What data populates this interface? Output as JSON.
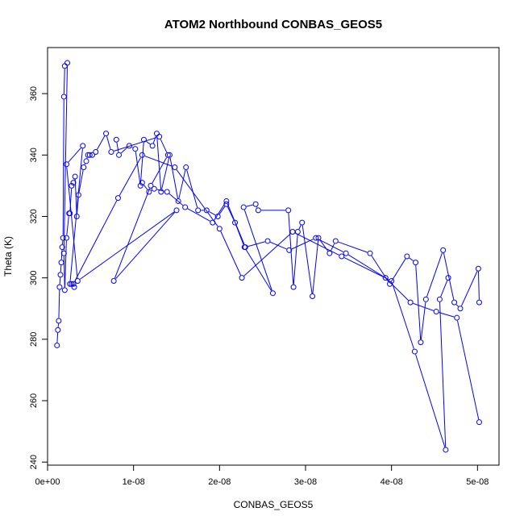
{
  "chart_data": {
    "type": "line",
    "title": "ATOM2 Northbound CONBAS_GEOS5",
    "xlabel": "CONBAS_GEOS5",
    "ylabel": "Theta (K)",
    "xlim": [
      0,
      5.25e-08
    ],
    "ylim": [
      239,
      375
    ],
    "x_ticks": [
      0,
      1e-08,
      2e-08,
      3e-08,
      4e-08,
      5e-08
    ],
    "x_tick_labels": [
      "0e+00",
      "1e-08",
      "2e-08",
      "3e-08",
      "4e-08",
      "5e-08"
    ],
    "y_ticks": [
      240,
      260,
      280,
      300,
      320,
      340,
      360
    ],
    "y_tick_labels": [
      "240",
      "260",
      "280",
      "300",
      "320",
      "340",
      "360"
    ],
    "grid": false,
    "series_color": "#0000ff",
    "marker": "open-circle",
    "series": [
      {
        "x": [
          1.1e-09,
          1.2e-09,
          1.3e-09,
          1.4e-09,
          1.5e-09,
          1.6e-09,
          1.7e-09,
          1.8e-09,
          1.9e-09,
          2e-09,
          2.3e-09,
          1.9e-09,
          2e-09,
          2.2e-09,
          2.5e-09,
          2.6e-09,
          2.8e-09,
          3e-09,
          3.2e-09,
          3.4e-09,
          3.6e-09,
          4.2e-09,
          4.5e-09,
          4.7e-09,
          4.9e-09,
          5.2e-09,
          5.6e-09,
          6.8e-09,
          7.4e-09,
          1.3e-08,
          1.4e-08,
          1.2e-08,
          7.7e-09,
          1.5e-08,
          3.5e-09,
          2.2e-09,
          4.1e-09,
          2.6e-09,
          2.8e-09,
          3.1e-09
        ],
        "y": [
          278,
          283,
          286,
          297,
          301,
          305,
          310,
          313,
          359,
          369,
          370,
          308,
          296,
          313,
          321,
          321,
          330,
          331,
          333,
          320,
          327,
          336,
          338,
          340,
          340,
          340,
          341,
          347,
          341,
          346,
          340,
          330,
          299,
          322,
          299,
          337,
          343,
          298,
          298,
          297
        ]
      },
      {
        "x": [
          8e-09,
          8.3e-09,
          9.5e-09,
          1.02e-08,
          1.08e-08,
          1.12e-08,
          1.22e-08,
          1.27e-08,
          1.32e-08,
          1.42e-08,
          1.52e-08,
          1.61e-08,
          1.75e-08,
          1.85e-08,
          1.98e-08,
          2.08e-08,
          2.18e-08,
          2.29e-08,
          2.62e-08,
          2.28e-08,
          2.42e-08,
          2.45e-08,
          2.8e-08,
          2.86e-08,
          2.91e-08,
          2.96e-08,
          3.08e-08,
          3.15e-08,
          3.28e-08,
          3.35e-08,
          3.75e-08,
          3.98e-08,
          4.18e-08,
          4.28e-08,
          4.34e-08,
          4.4e-08,
          4.6e-08,
          4.73e-08,
          4.8e-08,
          5.01e-08,
          5.02e-08
        ],
        "y": [
          345,
          340,
          343,
          342,
          330,
          345,
          343,
          347,
          328,
          340,
          325,
          336,
          322,
          322,
          320,
          324,
          318,
          310,
          295,
          323,
          324,
          322,
          322,
          297,
          315,
          318,
          294,
          313,
          308,
          312,
          308,
          298,
          307,
          305,
          279,
          293,
          309,
          292,
          290,
          303,
          292
        ]
      },
      {
        "x": [
          1.1e-08,
          1.18e-08,
          1.24e-08,
          1.39e-08,
          1.6e-08,
          1.92e-08,
          2.08e-08,
          2.3e-08,
          2.56e-08,
          2.81e-08,
          3.12e-08,
          3.47e-08,
          3.93e-08,
          4.22e-08,
          4.52e-08,
          4.76e-08,
          5.02e-08
        ],
        "y": [
          331,
          328,
          329,
          328,
          323,
          318,
          325,
          310,
          312,
          309,
          313,
          308,
          300,
          292,
          289,
          287,
          253
        ]
      },
      {
        "x": [
          3e-09,
          8.2e-09,
          1.1e-08,
          1.48e-08,
          2e-08,
          2.26e-08,
          2.85e-08,
          3.42e-08,
          4e-08,
          4.27e-08,
          4.63e-08,
          4.56e-08,
          4.66e-08
        ],
        "y": [
          298,
          326,
          340,
          336,
          316,
          300,
          315,
          307,
          299,
          276,
          244,
          293,
          300
        ]
      }
    ]
  }
}
